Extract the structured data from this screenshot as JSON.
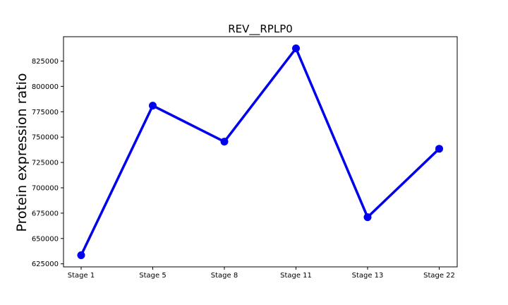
{
  "chart_data": {
    "type": "line",
    "title": "REV__RPLP0",
    "xlabel": "",
    "ylabel": "Protein expression ratio",
    "categories": [
      "Stage 1",
      "Stage 5",
      "Stage 8",
      "Stage 11",
      "Stage 13",
      "Stage 22"
    ],
    "series": [
      {
        "values": [
          633500,
          781000,
          745500,
          837500,
          671000,
          738500
        ],
        "color": "#0000ee"
      }
    ],
    "ylim": [
      622000,
      849000
    ],
    "yticks": [
      625000,
      650000,
      675000,
      700000,
      725000,
      750000,
      775000,
      800000,
      825000
    ],
    "ytick_labels": [
      "625000",
      "650000",
      "675000",
      "700000",
      "725000",
      "750000",
      "775000",
      "800000",
      "825000"
    ],
    "grid": false,
    "legend": "none"
  }
}
